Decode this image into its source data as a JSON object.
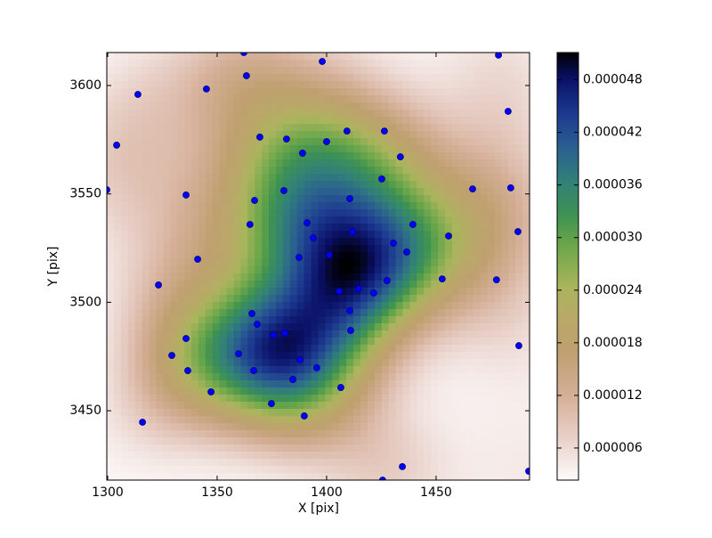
{
  "chart_data": {
    "type": "scatter",
    "xlabel": "X [pix]",
    "ylabel": "Y [pix]",
    "xlim": [
      1299.6,
      1492.7
    ],
    "ylim": [
      3418.0,
      3615.2
    ],
    "xticks": [
      1300,
      1350,
      1400,
      1450
    ],
    "yticks": [
      3450,
      3500,
      3550,
      3600
    ],
    "series": [
      {
        "color": "#0000ff",
        "x": [
          1362.2,
          1398.0,
          1478.5,
          1313.8,
          1345.1,
          1363.4,
          1304.1,
          1482.9,
          1369.5,
          1381.7,
          1409.3,
          1426.4,
          1400.0,
          1389.0,
          1433.7,
          1299.6,
          1335.8,
          1380.5,
          1425.2,
          1466.7,
          1484.1,
          1367.1,
          1410.6,
          1391.1,
          1365.0,
          1439.4,
          1411.8,
          1393.9,
          1455.7,
          1487.4,
          1430.5,
          1341.1,
          1401.2,
          1387.4,
          1436.6,
          1323.2,
          1452.8,
          1477.6,
          1427.6,
          1414.6,
          1405.7,
          1421.5,
          1365.9,
          1410.6,
          1368.3,
          1375.6,
          1380.9,
          1411.0,
          1335.8,
          1487.8,
          1329.3,
          1359.8,
          1387.8,
          1336.6,
          1366.7,
          1395.5,
          1384.6,
          1347.2,
          1406.5,
          1374.8,
          1389.8,
          1315.9,
          1434.6,
          1425.6,
          1492.3
        ],
        "y": [
          3615.2,
          3611.1,
          3614.0,
          3595.9,
          3598.4,
          3604.5,
          3572.5,
          3588.1,
          3576.2,
          3575.3,
          3579.0,
          3579.0,
          3574.1,
          3568.8,
          3567.1,
          3551.9,
          3549.5,
          3551.5,
          3556.9,
          3552.3,
          3552.8,
          3547.0,
          3547.8,
          3536.7,
          3535.9,
          3535.9,
          3532.6,
          3529.7,
          3530.6,
          3532.6,
          3527.3,
          3519.9,
          3521.9,
          3520.7,
          3523.2,
          3508.0,
          3510.8,
          3510.4,
          3510.0,
          3506.3,
          3505.1,
          3504.3,
          3494.8,
          3496.1,
          3489.9,
          3485.0,
          3485.8,
          3487.0,
          3483.3,
          3480.0,
          3475.5,
          3476.3,
          3473.5,
          3468.5,
          3468.5,
          3469.8,
          3464.4,
          3458.7,
          3460.7,
          3453.3,
          3447.6,
          3444.7,
          3424.2,
          3418.0,
          3422.1
        ]
      }
    ],
    "colorbar": {
      "lim": [
        2.34e-06,
        5.11e-05
      ],
      "ticks": [
        6e-06,
        1.2e-05,
        1.8e-05,
        2.4e-05,
        {
          "value": 3e-05,
          "label": "0.000030"
        },
        3.6e-05,
        4.2e-05,
        4.8e-05
      ]
    }
  }
}
